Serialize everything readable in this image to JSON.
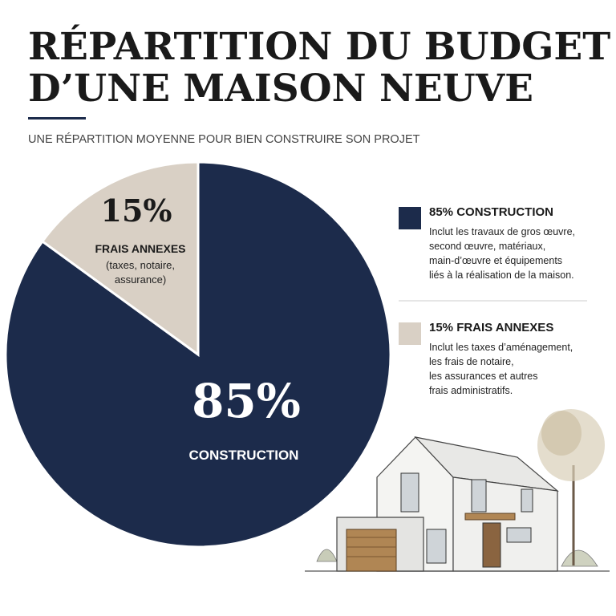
{
  "chart_data": {
    "type": "pie",
    "title_lines": [
      "RÉPARTITION DU BUDGET",
      "D’UNE MAISON NEUVE"
    ],
    "subtitle": "UNE RÉPARTITION MOYENNE POUR BIEN CONSTRUIRE SON PROJET",
    "categories": [
      "CONSTRUCTION",
      "FRAIS ANNEXES"
    ],
    "values": [
      85,
      15
    ],
    "value_labels": [
      "85%",
      "15%"
    ],
    "colors": [
      "#1c2b4b",
      "#d9d0c5"
    ],
    "slice_notes": [
      [],
      [
        "(taxes, notaire,",
        "assurance)"
      ]
    ],
    "legend": [
      {
        "title": "85% CONSTRUCTION",
        "lines": [
          "Inclut les travaux de gros œuvre,",
          "second œuvre, matériaux,",
          "main-d’œuvre et équipements",
          "liés à la réalisation de la maison."
        ]
      },
      {
        "title": "15% FRAIS ANNEXES",
        "lines": [
          "Inclut les taxes d’aménagement,",
          "les frais de notaire,",
          "les assurances et autres",
          "frais administratifs."
        ]
      }
    ]
  }
}
